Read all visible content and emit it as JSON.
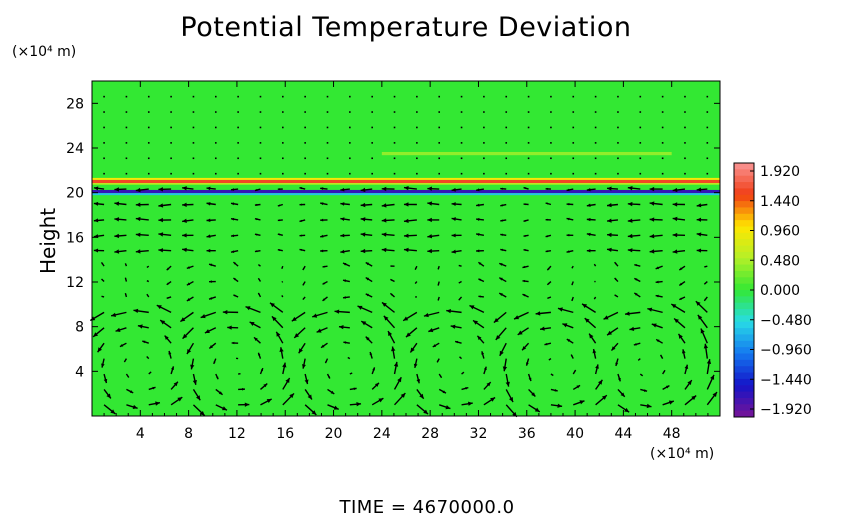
{
  "chart_data": {
    "type": "heatmap",
    "title": "Potential Temperature Deviation",
    "ylabel": "Height",
    "y_unit": "(×10⁴ m)",
    "x_unit": "(×10⁴ m)",
    "footer": "TIME  =  4670000.0",
    "xlim": [
      0,
      52
    ],
    "ylim": [
      0,
      30
    ],
    "x_ticks": [
      4,
      8,
      12,
      16,
      20,
      24,
      28,
      32,
      36,
      40,
      44,
      48
    ],
    "y_ticks": [
      4,
      8,
      12,
      16,
      20,
      24,
      28
    ],
    "colorbar": {
      "ticks": [
        "1.920",
        "1.440",
        "0.960",
        "0.480",
        "0.000",
        "−0.480",
        "−0.960",
        "−1.440",
        "−1.920"
      ],
      "range": [
        -1.92,
        1.92
      ]
    },
    "background_value": 0.0,
    "anomaly_bands": [
      {
        "y": 21.0,
        "x0": 0,
        "x1": 52,
        "value": 1.5
      },
      {
        "y": 20.1,
        "x0": 0,
        "x1": 52,
        "value": -1.6
      },
      {
        "y": 23.5,
        "x0": 24,
        "x1": 48,
        "value": 0.35
      }
    ],
    "colors": {
      "field": "#33e833",
      "text": "#000000",
      "arrows": "#000000"
    }
  }
}
